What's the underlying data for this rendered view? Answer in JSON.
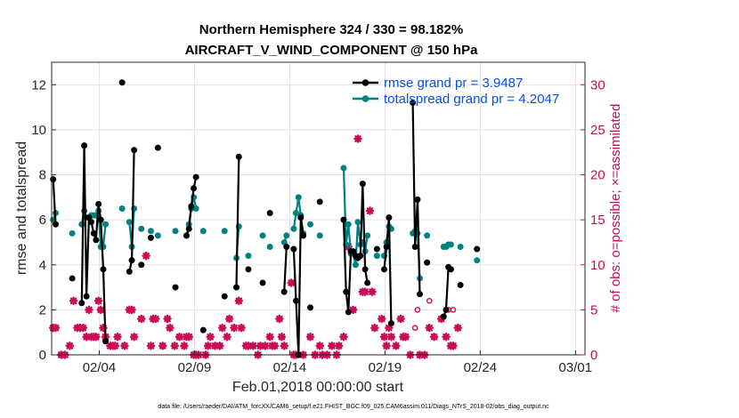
{
  "chart_data": {
    "type": "line",
    "title_line1": "Northern Hemisphere 324 / 330 = 98.182%",
    "title_line2": "AIRCRAFT_V_WIND_COMPONENT @ 150 hPa",
    "xlabel": "Feb.01,2018 00:00:00 start",
    "ylabel_left": "rmse and totalspread",
    "ylabel_right": "# of obs: o=possible; ×=assimilated",
    "footnote": "data file: /Users/raeder/DAI/ATM_forcXX/CAM6_setup/f.e21.FHIST_BGC.f09_025.CAM6assim.011/Diags_NTrS_2018-02/obs_diag_output.nc",
    "xlim": [
      0.5,
      28.5
    ],
    "ylim_left": [
      0,
      13
    ],
    "ylim_right": [
      0,
      32.5
    ],
    "x_ticks": [
      {
        "x": 3,
        "label": "02/04"
      },
      {
        "x": 8,
        "label": "02/09"
      },
      {
        "x": 13,
        "label": "02/14"
      },
      {
        "x": 18,
        "label": "02/19"
      },
      {
        "x": 23,
        "label": "02/24"
      },
      {
        "x": 28,
        "label": "03/01"
      }
    ],
    "y_ticks_left": [
      {
        "v": 0,
        "label": "0"
      },
      {
        "v": 2,
        "label": "2"
      },
      {
        "v": 4,
        "label": "4"
      },
      {
        "v": 6,
        "label": "6"
      },
      {
        "v": 8,
        "label": "8"
      },
      {
        "v": 10,
        "label": "10"
      },
      {
        "v": 12,
        "label": "12"
      }
    ],
    "y_ticks_right": [
      {
        "v": 0,
        "label": "0"
      },
      {
        "v": 5,
        "label": "5"
      },
      {
        "v": 10,
        "label": "10"
      },
      {
        "v": 15,
        "label": "15"
      },
      {
        "v": 20,
        "label": "20"
      },
      {
        "v": 25,
        "label": "25"
      },
      {
        "v": 30,
        "label": "30"
      }
    ],
    "grid": true,
    "legend_position": "top-right",
    "colors": {
      "rmse": "#000000",
      "spread": "#00807f",
      "obs": "#cc0b55",
      "legend_text": "#0a4ee6"
    },
    "series": [
      {
        "name": "rmse grand pr = 3.9487",
        "color": "#000000",
        "points": [
          [
            0.58,
            7.8
          ],
          [
            0.71,
            5.8
          ],
          null,
          [
            1.58,
            3.4
          ],
          null,
          [
            2.08,
            2.3
          ],
          [
            2.21,
            9.3
          ],
          [
            2.33,
            2.6
          ],
          [
            2.46,
            6.1
          ],
          [
            2.58,
            5.9
          ],
          [
            2.71,
            5.4
          ],
          [
            2.83,
            5.1
          ],
          [
            2.96,
            6.7
          ],
          [
            3.08,
            6.0
          ],
          [
            3.21,
            3.8
          ],
          [
            3.33,
            0.6
          ],
          null,
          [
            4.2,
            12.1
          ],
          null,
          [
            4.58,
            3.7
          ],
          [
            4.71,
            4.2
          ],
          [
            4.83,
            9.1
          ],
          null,
          [
            5.21,
            4.0
          ],
          null,
          [
            5.71,
            5.2
          ],
          null,
          [
            6.08,
            9.2
          ],
          null,
          [
            7.0,
            3.0
          ],
          null,
          [
            7.58,
            5.3
          ],
          [
            7.71,
            5.6
          ],
          [
            7.83,
            6.6
          ],
          [
            7.96,
            7.4
          ],
          [
            8.08,
            7.9
          ],
          null,
          [
            8.46,
            1.1
          ],
          null,
          [
            9.58,
            2.6
          ],
          null,
          [
            10.2,
            3.0
          ],
          [
            10.33,
            8.8
          ],
          null,
          [
            10.83,
            3.8
          ],
          null,
          [
            11.58,
            3.2
          ],
          null,
          [
            11.96,
            6.3
          ],
          null,
          [
            12.71,
            2.8
          ],
          [
            12.83,
            4.8
          ],
          null,
          [
            13.21,
            4.7
          ],
          [
            13.33,
            2.4
          ],
          [
            13.46,
            0.0
          ],
          [
            13.58,
            6.1
          ],
          [
            13.71,
            5.3
          ],
          null,
          [
            14.08,
            2.1
          ],
          null,
          [
            14.58,
            6.8
          ],
          null,
          [
            15.83,
            6.0
          ],
          [
            15.96,
            2.8
          ],
          [
            16.08,
            1.9
          ],
          [
            16.21,
            4.6
          ],
          [
            16.33,
            4.6
          ],
          [
            16.46,
            4.4
          ],
          [
            16.58,
            4.3
          ],
          [
            16.71,
            4.4
          ],
          [
            16.83,
            7.6
          ],
          [
            16.96,
            3.8
          ],
          [
            17.08,
            3.2
          ],
          null,
          [
            17.58,
            4.7
          ],
          null,
          [
            17.96,
            3.8
          ],
          [
            18.08,
            4.8
          ],
          [
            18.21,
            6.1
          ],
          [
            18.33,
            1.4
          ],
          null,
          [
            19.46,
            11.2
          ],
          [
            19.58,
            4.8
          ],
          [
            19.71,
            6.9
          ],
          [
            19.83,
            2.7
          ],
          null,
          [
            20.21,
            4.1
          ],
          null,
          [
            21.08,
            1.7
          ],
          [
            21.21,
            2.0
          ],
          [
            21.33,
            3.9
          ],
          [
            21.46,
            3.8
          ],
          null,
          [
            21.96,
            3.1
          ],
          null,
          [
            22.83,
            4.7
          ]
        ]
      },
      {
        "name": "totalspread grand pr = 4.2047",
        "color": "#00807f",
        "points": [
          [
            0.58,
            6.0
          ],
          [
            0.71,
            6.3
          ],
          null,
          [
            1.58,
            5.4
          ],
          null,
          [
            2.08,
            5.8
          ],
          [
            2.21,
            6.4
          ],
          [
            2.33,
            6.1
          ],
          [
            2.46,
            6.1
          ],
          [
            2.58,
            6.2
          ],
          [
            2.71,
            6.2
          ],
          [
            2.83,
            6.2
          ],
          [
            2.96,
            6.4
          ],
          [
            3.08,
            4.8
          ],
          [
            3.21,
            4.8
          ],
          [
            3.33,
            5.8
          ],
          null,
          [
            4.2,
            6.5
          ],
          null,
          [
            4.58,
            5.9
          ],
          [
            4.71,
            4.8
          ],
          [
            4.83,
            6.5
          ],
          null,
          [
            5.21,
            5.6
          ],
          null,
          [
            5.71,
            5.5
          ],
          null,
          [
            6.08,
            5.3
          ],
          null,
          [
            7.0,
            5.5
          ],
          null,
          [
            7.58,
            5.3
          ],
          [
            7.71,
            5.8
          ],
          [
            7.83,
            6.5
          ],
          [
            7.96,
            7.0
          ],
          [
            8.08,
            6.5
          ],
          null,
          [
            8.46,
            5.5
          ],
          null,
          [
            9.58,
            5.5
          ],
          null,
          [
            10.2,
            4.3
          ],
          [
            10.33,
            5.7
          ],
          null,
          [
            10.83,
            4.4
          ],
          null,
          [
            11.58,
            5.3
          ],
          null,
          [
            11.96,
            4.8
          ],
          null,
          [
            12.71,
            5.0
          ],
          [
            12.83,
            5.3
          ],
          null,
          [
            13.21,
            5.6
          ],
          [
            13.33,
            6.3
          ],
          [
            13.46,
            7.0
          ],
          [
            13.58,
            6.2
          ],
          [
            13.71,
            5.4
          ],
          null,
          [
            14.08,
            5.8
          ],
          null,
          [
            14.58,
            5.3
          ],
          null,
          [
            15.83,
            8.3
          ],
          [
            15.96,
            4.9
          ],
          [
            16.08,
            5.8
          ],
          [
            16.21,
            4.5
          ],
          [
            16.33,
            4.5
          ],
          [
            16.46,
            4.0
          ],
          [
            16.58,
            5.9
          ],
          [
            16.71,
            4.9
          ],
          [
            16.83,
            5.0
          ],
          [
            16.96,
            4.6
          ],
          [
            17.08,
            5.3
          ],
          null,
          [
            17.58,
            4.4
          ],
          null,
          [
            17.96,
            4.4
          ],
          [
            18.08,
            5.0
          ],
          [
            18.21,
            5.7
          ],
          [
            18.33,
            5.6
          ],
          null,
          [
            19.46,
            5.4
          ],
          [
            19.58,
            5.5
          ],
          [
            19.71,
            5.4
          ],
          [
            19.83,
            3.4
          ],
          null,
          [
            20.21,
            5.3
          ],
          null,
          [
            21.08,
            4.8
          ],
          [
            21.21,
            4.8
          ],
          [
            21.33,
            4.9
          ],
          [
            21.46,
            4.9
          ],
          null,
          [
            21.96,
            4.8
          ],
          null,
          [
            22.83,
            4.2
          ]
        ]
      }
    ],
    "obs_assimilated": [
      [
        0.58,
        3
      ],
      [
        0.71,
        3
      ],
      [
        1.0,
        0
      ],
      [
        1.2,
        0
      ],
      [
        1.45,
        1
      ],
      [
        1.65,
        6
      ],
      [
        1.85,
        3
      ],
      [
        2.0,
        3
      ],
      [
        2.15,
        3
      ],
      [
        2.33,
        2
      ],
      [
        2.46,
        5
      ],
      [
        2.58,
        2
      ],
      [
        2.71,
        2
      ],
      [
        2.83,
        2
      ],
      [
        2.96,
        6
      ],
      [
        3.08,
        5
      ],
      [
        3.21,
        3
      ],
      [
        3.33,
        2
      ],
      [
        3.58,
        1
      ],
      [
        3.71,
        1
      ],
      [
        3.83,
        1
      ],
      [
        3.96,
        2
      ],
      [
        4.33,
        1
      ],
      [
        4.58,
        5
      ],
      [
        4.71,
        5
      ],
      [
        4.83,
        2
      ],
      [
        5.21,
        4
      ],
      [
        5.46,
        11
      ],
      [
        5.71,
        1
      ],
      [
        5.83,
        4
      ],
      [
        5.96,
        4
      ],
      [
        6.33,
        1
      ],
      [
        6.58,
        4
      ],
      [
        6.71,
        3
      ],
      [
        6.96,
        1
      ],
      [
        7.21,
        2
      ],
      [
        7.46,
        1
      ],
      [
        7.58,
        2
      ],
      [
        7.71,
        2
      ],
      [
        7.96,
        0
      ],
      [
        8.08,
        0
      ],
      [
        8.21,
        0
      ],
      [
        8.58,
        0
      ],
      [
        8.71,
        1
      ],
      [
        8.83,
        2
      ],
      [
        9.08,
        1
      ],
      [
        9.33,
        1
      ],
      [
        9.46,
        3
      ],
      [
        9.71,
        2
      ],
      [
        9.83,
        4
      ],
      [
        10.08,
        3
      ],
      [
        10.33,
        6
      ],
      [
        10.46,
        3
      ],
      [
        10.71,
        1
      ],
      [
        10.83,
        1
      ],
      [
        11.08,
        1
      ],
      [
        11.33,
        0
      ],
      [
        11.46,
        1
      ],
      [
        11.71,
        1
      ],
      [
        11.96,
        2
      ],
      [
        12.08,
        1
      ],
      [
        12.21,
        1
      ],
      [
        12.46,
        4
      ],
      [
        12.58,
        2
      ],
      [
        12.71,
        1
      ],
      [
        13.08,
        8
      ],
      [
        13.21,
        0
      ],
      [
        13.33,
        0
      ],
      [
        13.71,
        0
      ],
      [
        14.08,
        2
      ],
      [
        14.33,
        0
      ],
      [
        14.58,
        1
      ],
      [
        14.71,
        0
      ],
      [
        14.96,
        0
      ],
      [
        15.21,
        1
      ],
      [
        15.46,
        0
      ],
      [
        15.58,
        1
      ],
      [
        15.83,
        2
      ],
      [
        16.08,
        12
      ],
      [
        16.33,
        5
      ],
      [
        16.58,
        24
      ],
      [
        16.83,
        7
      ],
      [
        16.96,
        7
      ],
      [
        17.21,
        16
      ],
      [
        17.33,
        7
      ],
      [
        17.46,
        3
      ],
      [
        17.83,
        4
      ],
      [
        17.96,
        2
      ],
      [
        18.08,
        1
      ],
      [
        18.21,
        3
      ],
      [
        18.33,
        2
      ],
      [
        18.58,
        1
      ],
      [
        18.83,
        4
      ],
      [
        18.96,
        2
      ],
      [
        19.08,
        2
      ],
      [
        19.33,
        0
      ],
      [
        19.83,
        0
      ],
      [
        20.08,
        0
      ],
      [
        20.33,
        3
      ],
      [
        20.58,
        2
      ],
      [
        20.96,
        4
      ],
      [
        21.21,
        2
      ],
      [
        21.46,
        1
      ],
      [
        21.58,
        1
      ],
      [
        21.83,
        3
      ]
    ],
    "obs_possible": [
      [
        19.58,
        3
      ],
      [
        19.71,
        5
      ],
      [
        20.33,
        6
      ],
      [
        21.33,
        5
      ],
      [
        21.58,
        5
      ]
    ]
  }
}
